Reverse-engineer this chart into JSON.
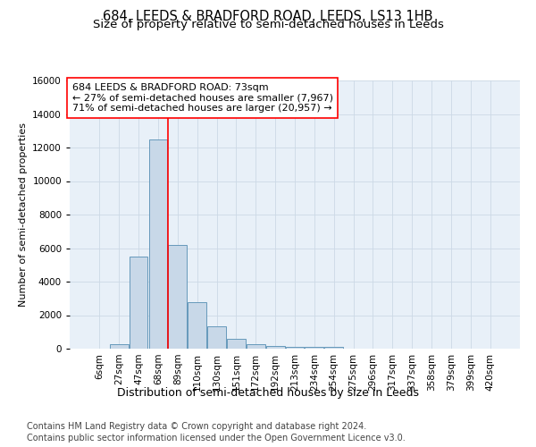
{
  "title": "684, LEEDS & BRADFORD ROAD, LEEDS, LS13 1HB",
  "subtitle": "Size of property relative to semi-detached houses in Leeds",
  "xlabel": "Distribution of semi-detached houses by size in Leeds",
  "ylabel": "Number of semi-detached properties",
  "annotation_line1": "684 LEEDS & BRADFORD ROAD: 73sqm",
  "annotation_line2": "← 27% of semi-detached houses are smaller (7,967)",
  "annotation_line3": "71% of semi-detached houses are larger (20,957) →",
  "footnote1": "Contains HM Land Registry data © Crown copyright and database right 2024.",
  "footnote2": "Contains public sector information licensed under the Open Government Licence v3.0.",
  "bar_labels": [
    "6sqm",
    "27sqm",
    "47sqm",
    "68sqm",
    "89sqm",
    "110sqm",
    "130sqm",
    "151sqm",
    "172sqm",
    "192sqm",
    "213sqm",
    "234sqm",
    "254sqm",
    "275sqm",
    "296sqm",
    "317sqm",
    "337sqm",
    "358sqm",
    "379sqm",
    "399sqm",
    "420sqm"
  ],
  "bar_values": [
    0,
    280,
    5500,
    12500,
    6200,
    2750,
    1350,
    575,
    250,
    175,
    125,
    100,
    100,
    0,
    0,
    0,
    0,
    0,
    0,
    0,
    0
  ],
  "bar_color": "#c8d8e8",
  "bar_edge_color": "#6699bb",
  "grid_color": "#ccd9e6",
  "background_color": "#e8f0f8",
  "red_line_x": 3.5,
  "ylim": [
    0,
    16000
  ],
  "yticks": [
    0,
    2000,
    4000,
    6000,
    8000,
    10000,
    12000,
    14000,
    16000
  ],
  "title_fontsize": 10.5,
  "subtitle_fontsize": 9.5,
  "ylabel_fontsize": 8,
  "annotation_fontsize": 8,
  "xlabel_fontsize": 9,
  "footnote_fontsize": 7,
  "tick_fontsize": 7.5
}
